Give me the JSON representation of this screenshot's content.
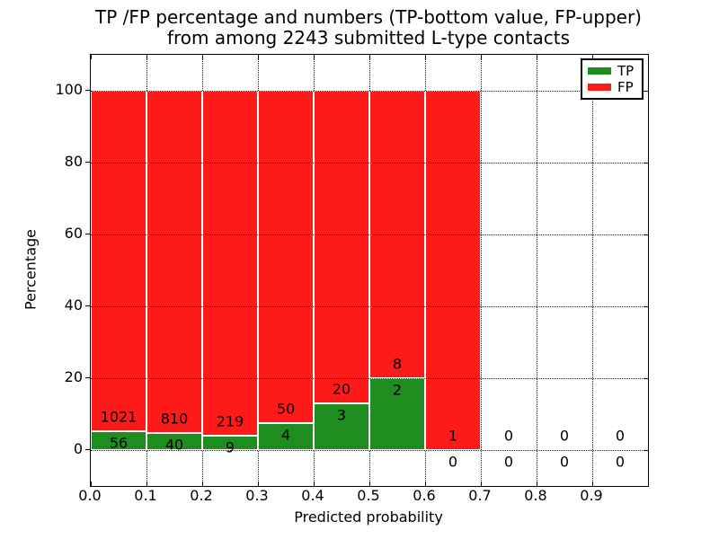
{
  "title": {
    "line1": "TP /FP percentage and numbers (TP-bottom value, FP-upper)",
    "line2": "from among 2243 submitted L-type contacts"
  },
  "legend": {
    "position": "upper right",
    "entries": [
      {
        "label": "TP",
        "color": "#1e8c1e"
      },
      {
        "label": "FP",
        "color": "#ff1a1a"
      }
    ]
  },
  "colors": {
    "tp": "#1e8c1e",
    "fp": "#ff1a1a",
    "grid": "#1a1a1a",
    "spine": "#000000",
    "background": "#ffffff"
  },
  "chart_data": {
    "type": "bar",
    "stacked": true,
    "orientation": "vertical",
    "title": "TP /FP percentage and numbers (TP-bottom value, FP-upper) from among 2243 submitted L-type contacts",
    "xlabel": "Predicted probability",
    "ylabel": "Percentage",
    "xlim": [
      0.0,
      1.0
    ],
    "ylim": [
      -10,
      110
    ],
    "grid": "dotted",
    "legend_position": "upper right",
    "total_submitted": 2243,
    "bin_width": 0.1,
    "bin_edges": [
      0.0,
      0.1,
      0.2,
      0.3,
      0.4,
      0.5,
      0.6,
      0.7,
      0.8,
      0.9,
      1.0
    ],
    "categories": [
      "0.0-0.1",
      "0.1-0.2",
      "0.2-0.3",
      "0.3-0.4",
      "0.4-0.5",
      "0.5-0.6",
      "0.6-0.7",
      "0.7-0.8",
      "0.8-0.9",
      "0.9-1.0"
    ],
    "series": [
      {
        "name": "TP",
        "color": "#1e8c1e",
        "counts": [
          56,
          40,
          9,
          4,
          3,
          2,
          0,
          0,
          0,
          0
        ],
        "percent": [
          5.2,
          4.7,
          3.9,
          7.4,
          13.0,
          20.0,
          0.0,
          0.0,
          0.0,
          0.0
        ]
      },
      {
        "name": "FP",
        "color": "#ff1a1a",
        "counts": [
          1021,
          810,
          219,
          50,
          20,
          8,
          1,
          0,
          0,
          0
        ],
        "percent": [
          94.8,
          95.3,
          96.1,
          92.6,
          87.0,
          80.0,
          100.0,
          0.0,
          0.0,
          0.0
        ]
      }
    ],
    "x_tick_values": [
      0.0,
      0.1,
      0.2,
      0.3,
      0.4,
      0.5,
      0.6,
      0.7,
      0.8,
      0.9
    ],
    "x_tick_labels": [
      "0.0",
      "0.1",
      "0.2",
      "0.3",
      "0.4",
      "0.5",
      "0.6",
      "0.7",
      "0.8",
      "0.9"
    ],
    "y_tick_values": [
      0,
      20,
      40,
      60,
      80,
      100
    ],
    "y_tick_labels": [
      "0",
      "20",
      "40",
      "60",
      "80",
      "100"
    ]
  }
}
